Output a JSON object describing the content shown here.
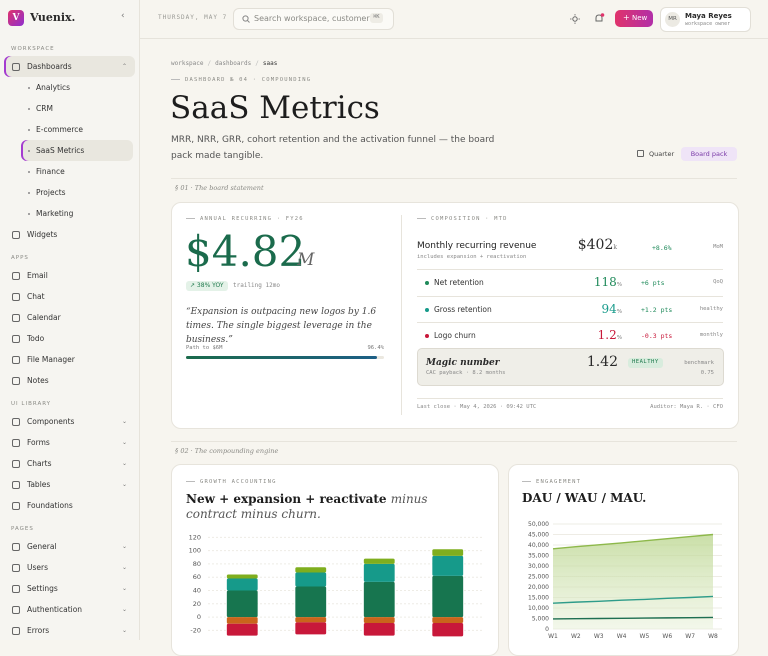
{
  "sidebar": {
    "logo": "V",
    "brand": "Vuenix.",
    "groups": [
      {
        "label": "WORKSPACE",
        "items": [
          {
            "label": "Dashboards",
            "expandable": true,
            "open": true,
            "active": true,
            "children": [
              {
                "label": "Analytics"
              },
              {
                "label": "CRM"
              },
              {
                "label": "E-commerce"
              },
              {
                "label": "SaaS Metrics",
                "active": true
              },
              {
                "label": "Finance"
              },
              {
                "label": "Projects"
              },
              {
                "label": "Marketing"
              }
            ]
          },
          {
            "label": "Widgets"
          }
        ]
      },
      {
        "label": "APPS",
        "items": [
          {
            "label": "Email"
          },
          {
            "label": "Chat"
          },
          {
            "label": "Calendar"
          },
          {
            "label": "Todo"
          },
          {
            "label": "File Manager"
          },
          {
            "label": "Notes"
          }
        ]
      },
      {
        "label": "UI LIBRARY",
        "items": [
          {
            "label": "Components",
            "expandable": true
          },
          {
            "label": "Forms",
            "expandable": true
          },
          {
            "label": "Charts",
            "expandable": true
          },
          {
            "label": "Tables",
            "expandable": true
          },
          {
            "label": "Foundations"
          }
        ]
      },
      {
        "label": "PAGES",
        "items": [
          {
            "label": "General",
            "expandable": true
          },
          {
            "label": "Users",
            "expandable": true
          },
          {
            "label": "Settings",
            "expandable": true
          },
          {
            "label": "Authentication",
            "expandable": true
          },
          {
            "label": "Errors",
            "expandable": true
          }
        ]
      }
    ]
  },
  "header": {
    "date": "THURSDAY, MAY 7",
    "search_placeholder": "Search workspace, customer",
    "shortcut": "⌘K",
    "new_button": "New",
    "user": {
      "initials": "MR",
      "name": "Maya Reyes",
      "role": "workspace owner"
    }
  },
  "page": {
    "breadcrumb": [
      "workspace",
      "dashboards",
      "saas"
    ],
    "eyebrow": "DASHBOARD № 04 · COMPOUNDING",
    "title": "SaaS Metrics",
    "subtitle": "MRR, NRR, GRR, cohort retention and the activation funnel — the board pack made tangible.",
    "actions": [
      "Quarter",
      "Board pack"
    ]
  },
  "statement": {
    "section": "§ 01 · The board statement",
    "arr": {
      "eyebrow": "ANNUAL RECURRING · FY26",
      "value": "$4.82",
      "unit": "M",
      "badge": "↗ 38% YOY",
      "trailing": "trailing 12mo",
      "quote": "“Expansion is outpacing new logos by 1.6 times. The single biggest leverage in the business.”",
      "progress": {
        "label": "Path to $6M",
        "value": 96.4,
        "value_label": "96.4%"
      }
    },
    "composition": {
      "eyebrow": "COMPOSITION · MTD",
      "mrr": {
        "label": "Monthly recurring revenue",
        "note": "includes expansion + reactivation",
        "value": "$402",
        "unit": "k",
        "change": "+8.6%",
        "period": "MoM"
      },
      "rows": [
        {
          "label": "Net retention",
          "value": "118",
          "unit": "%",
          "change": "+6 pts",
          "period": "QoQ",
          "tone": "good",
          "color": "#1f8a5a"
        },
        {
          "label": "Gross retention",
          "value": "94",
          "unit": "%",
          "change": "+1.2 pts",
          "period": "healthy",
          "tone": "good",
          "color": "#169a8a"
        },
        {
          "label": "Logo churn",
          "value": "1.2",
          "unit": "%",
          "change": "-0.3 pts",
          "period": "monthly",
          "tone": "bad",
          "color": "#c8183a"
        }
      ],
      "magic": {
        "label": "Magic number",
        "note": "CAC payback · 8.2 months",
        "value": "1.42",
        "status": "HEALTHY",
        "benchmark_label": "benchmark",
        "benchmark": "0.75"
      },
      "footer": {
        "left": "Last close · May 4, 2026 · 09:42 UTC",
        "right": "Auditor: Maya R. · CFO"
      }
    }
  },
  "engine": {
    "section": "§ 02 · The compounding engine"
  },
  "chart_data": [
    {
      "type": "bar",
      "stacked": true,
      "eyebrow": "GROWTH ACCOUNTING",
      "title": "New + expansion + reactivate",
      "title_emphasis": "minus contract minus churn.",
      "ylim": [
        -30,
        125
      ],
      "yticks": [
        120,
        100,
        80,
        60,
        40,
        20,
        0,
        -20
      ],
      "grid": true,
      "series": [
        {
          "color": "#17754f",
          "values": [
            40,
            46,
            53,
            62
          ]
        },
        {
          "color": "#169a8a",
          "values": [
            18,
            21,
            27,
            30
          ]
        },
        {
          "color": "#7fae1e",
          "values": [
            6,
            8,
            8,
            10
          ]
        },
        {
          "color": "#c9651b",
          "values": [
            -10,
            -8,
            -9,
            -9
          ]
        },
        {
          "color": "#c8183a",
          "values": [
            -18,
            -18,
            -19,
            -20
          ]
        }
      ]
    },
    {
      "type": "line",
      "eyebrow": "ENGAGEMENT",
      "title": "DAU / WAU / MAU.",
      "categories": [
        "W1",
        "W2",
        "W3",
        "W4",
        "W5",
        "W6",
        "W7",
        "W8"
      ],
      "ylim": [
        0,
        50000
      ],
      "yticks": [
        0,
        {
          "value": 5000,
          "label": "5,000"
        },
        {
          "value": 10000,
          "label": "10,000"
        },
        {
          "value": 15000,
          "label": "15,000"
        },
        {
          "value": 20000,
          "label": "20,000"
        },
        {
          "value": 25000,
          "label": "25,000"
        },
        {
          "value": 30000,
          "label": "30,000"
        },
        {
          "value": 35000,
          "label": "35,000"
        },
        {
          "value": 40000,
          "label": "40,000"
        },
        {
          "value": 45000,
          "label": "45,000"
        },
        {
          "value": 50000,
          "label": "50,000"
        }
      ],
      "grid": true,
      "series": [
        {
          "color": "#8db84a",
          "area": true,
          "values": [
            38200,
            39200,
            40100,
            41000,
            42000,
            43000,
            44000,
            45000
          ]
        },
        {
          "color": "#2e9c8a",
          "values": [
            12300,
            12800,
            13200,
            13700,
            14100,
            14600,
            15000,
            15500
          ]
        },
        {
          "color": "#1e6f52",
          "values": [
            4800,
            4900,
            5000,
            5100,
            5200,
            5300,
            5400,
            5500
          ]
        }
      ]
    }
  ]
}
